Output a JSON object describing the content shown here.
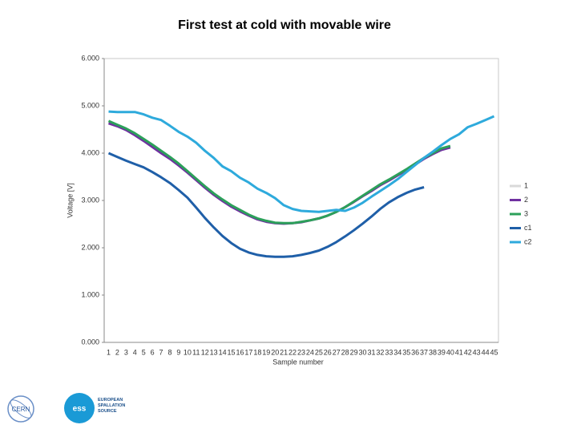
{
  "chart_data": {
    "type": "line",
    "title": "First test at cold with movable wire",
    "x_label": "Sample number",
    "y_label": "Voltage [V]",
    "categories": [
      1,
      2,
      3,
      4,
      5,
      6,
      7,
      8,
      9,
      10,
      11,
      12,
      13,
      14,
      15,
      16,
      17,
      18,
      19,
      20,
      21,
      22,
      23,
      24,
      25,
      26,
      27,
      28,
      29,
      30,
      31,
      32,
      33,
      34,
      35,
      36,
      37,
      38,
      39,
      40,
      41,
      42,
      43,
      44,
      45
    ],
    "ylim": [
      0,
      6
    ],
    "yticks": [
      {
        "value": 0,
        "label": "0.000"
      },
      {
        "value": 1,
        "label": "1.000"
      },
      {
        "value": 2,
        "label": "2.000"
      },
      {
        "value": 3,
        "label": "3.000"
      },
      {
        "value": 4,
        "label": "4.000"
      },
      {
        "value": 5,
        "label": "5.000"
      },
      {
        "value": 6,
        "label": "6.000"
      }
    ],
    "grid": false,
    "legend": "right",
    "series": [
      {
        "name": "1",
        "color": "#d9d9d9",
        "values": [
          4.64,
          4.58,
          4.5,
          4.39,
          4.27,
          4.14,
          4.01,
          3.89,
          3.75,
          3.6,
          3.44,
          3.28,
          3.13,
          3.0,
          2.88,
          2.78,
          2.69,
          2.61,
          2.56,
          2.52,
          2.51,
          2.52,
          2.54,
          2.58,
          2.62,
          2.68,
          2.76,
          2.86,
          2.97,
          3.09,
          3.21,
          3.33,
          3.43,
          3.54,
          3.65,
          3.77,
          3.89,
          3.99,
          4.08,
          4.13,
          null,
          null,
          null,
          null,
          null
        ]
      },
      {
        "name": "2",
        "color": "#7030a0",
        "values": [
          4.63,
          4.57,
          4.49,
          4.38,
          4.26,
          4.13,
          4.0,
          3.88,
          3.74,
          3.59,
          3.43,
          3.27,
          3.12,
          2.99,
          2.87,
          2.77,
          2.68,
          2.6,
          2.55,
          2.52,
          2.51,
          2.52,
          2.54,
          2.58,
          2.62,
          2.68,
          2.76,
          2.86,
          2.97,
          3.09,
          3.2,
          3.32,
          3.42,
          3.53,
          3.64,
          3.76,
          3.88,
          3.98,
          4.07,
          4.12,
          null,
          null,
          null,
          null,
          null
        ]
      },
      {
        "name": "3",
        "color": "#2ca05a",
        "values": [
          4.68,
          4.6,
          4.52,
          4.42,
          4.3,
          4.18,
          4.05,
          3.92,
          3.78,
          3.62,
          3.46,
          3.3,
          3.15,
          3.02,
          2.9,
          2.8,
          2.7,
          2.62,
          2.57,
          2.53,
          2.52,
          2.52,
          2.55,
          2.58,
          2.62,
          2.68,
          2.76,
          2.86,
          2.98,
          3.1,
          3.22,
          3.34,
          3.44,
          3.55,
          3.66,
          3.78,
          3.9,
          4.0,
          4.1,
          4.15,
          null,
          null,
          null,
          null,
          null
        ]
      },
      {
        "name": "c1",
        "color": "#1f5fa8",
        "values": [
          4.0,
          3.92,
          3.84,
          3.77,
          3.7,
          3.6,
          3.49,
          3.37,
          3.22,
          3.06,
          2.85,
          2.63,
          2.43,
          2.25,
          2.1,
          1.98,
          1.9,
          1.85,
          1.82,
          1.81,
          1.81,
          1.82,
          1.85,
          1.89,
          1.94,
          2.02,
          2.12,
          2.24,
          2.37,
          2.51,
          2.66,
          2.82,
          2.96,
          3.07,
          3.16,
          3.23,
          3.28,
          null,
          null,
          null,
          null,
          null,
          null,
          null,
          null
        ]
      },
      {
        "name": "c2",
        "color": "#2eaadc",
        "values": [
          4.88,
          4.87,
          4.87,
          4.87,
          4.82,
          4.75,
          4.7,
          4.58,
          4.45,
          4.35,
          4.22,
          4.05,
          3.9,
          3.72,
          3.62,
          3.48,
          3.38,
          3.25,
          3.16,
          3.05,
          2.9,
          2.82,
          2.78,
          2.77,
          2.76,
          2.78,
          2.8,
          2.78,
          2.85,
          2.95,
          3.08,
          3.2,
          3.32,
          3.45,
          3.6,
          3.75,
          3.9,
          4.03,
          4.17,
          4.3,
          4.4,
          4.55,
          4.62,
          4.7,
          4.78
        ]
      }
    ]
  },
  "footer": {
    "logo_left": "CERN",
    "logo_right": "EUROPEAN SPALLATION SOURCE"
  }
}
